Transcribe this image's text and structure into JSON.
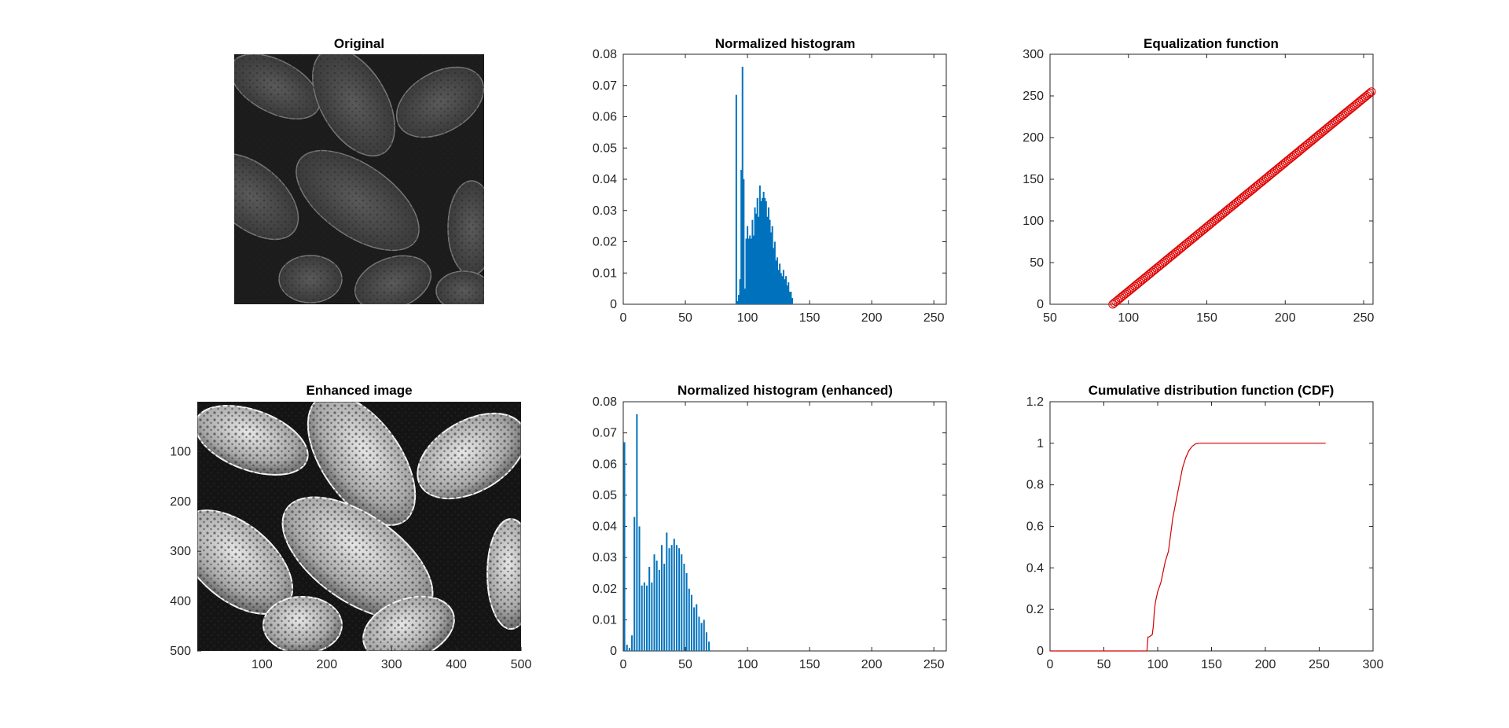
{
  "colors": {
    "hist_bar": "#0072BD",
    "cdf_line": "#D40000",
    "marker": "#E00000",
    "axes": "#262626"
  },
  "chart_data": [
    {
      "id": "original",
      "type": "image",
      "title": "Original",
      "description_visual": "low-contrast grayscale micrograph of pollen grains",
      "axes_visible": false
    },
    {
      "id": "hist",
      "type": "bar",
      "title": "Normalized histogram",
      "xlim": [
        0,
        260
      ],
      "ylim": [
        0,
        0.08
      ],
      "xticks": [
        "0",
        "50",
        "100",
        "150",
        "200",
        "250"
      ],
      "xtick_values": [
        0,
        50,
        100,
        150,
        200,
        250
      ],
      "yticks": [
        "0",
        "0.01",
        "0.02",
        "0.03",
        "0.04",
        "0.05",
        "0.06",
        "0.07",
        "0.08"
      ],
      "ytick_values": [
        0,
        0.01,
        0.02,
        0.03,
        0.04,
        0.05,
        0.06,
        0.07,
        0.08
      ],
      "x": [
        91,
        92,
        93,
        94,
        95,
        96,
        97,
        98,
        99,
        100,
        101,
        102,
        103,
        104,
        105,
        106,
        107,
        108,
        109,
        110,
        111,
        112,
        113,
        114,
        115,
        116,
        117,
        118,
        119,
        120,
        121,
        122,
        123,
        124,
        125,
        126,
        127,
        128,
        129,
        130,
        131,
        132,
        133,
        134,
        135,
        136
      ],
      "values": [
        0.067,
        0.001,
        0.003,
        0.008,
        0.043,
        0.076,
        0.04,
        0.005,
        0.021,
        0.025,
        0.021,
        0.022,
        0.021,
        0.027,
        0.022,
        0.031,
        0.029,
        0.034,
        0.028,
        0.038,
        0.033,
        0.034,
        0.036,
        0.034,
        0.033,
        0.028,
        0.031,
        0.027,
        0.023,
        0.025,
        0.018,
        0.02,
        0.014,
        0.015,
        0.011,
        0.013,
        0.01,
        0.009,
        0.011,
        0.008,
        0.009,
        0.006,
        0.007,
        0.004,
        0.004,
        0.002
      ]
    },
    {
      "id": "eqfunc",
      "type": "scatter",
      "title": "Equalization function",
      "xlim": [
        50,
        256
      ],
      "ylim": [
        0,
        300
      ],
      "xticks": [
        "50",
        "100",
        "150",
        "200",
        "250"
      ],
      "xtick_values": [
        50,
        100,
        150,
        200,
        250
      ],
      "yticks": [
        "0",
        "50",
        "100",
        "150",
        "200",
        "250",
        "300"
      ],
      "ytick_values": [
        0,
        50,
        100,
        150,
        200,
        250,
        300
      ],
      "x_range": [
        90,
        255
      ],
      "y_range": [
        0,
        255
      ],
      "marker": "circle"
    },
    {
      "id": "enhanced",
      "type": "image",
      "title": "Enhanced image",
      "xlim": [
        0,
        500
      ],
      "ylim": [
        0,
        500
      ],
      "xticks": [
        "100",
        "200",
        "300",
        "400",
        "500"
      ],
      "xtick_values": [
        100,
        200,
        300,
        400,
        500
      ],
      "yticks": [
        "100",
        "200",
        "300",
        "400",
        "500"
      ],
      "ytick_values": [
        100,
        200,
        300,
        400,
        500
      ],
      "description_visual": "high-contrast grayscale micrograph of pollen grains"
    },
    {
      "id": "hist_enh",
      "type": "bar",
      "title": "Normalized histogram (enhanced)",
      "xlim": [
        0,
        260
      ],
      "ylim": [
        0,
        0.08
      ],
      "xticks": [
        "0",
        "50",
        "100",
        "150",
        "200",
        "250"
      ],
      "xtick_values": [
        0,
        50,
        100,
        150,
        200,
        250
      ],
      "yticks": [
        "0",
        "0.01",
        "0.02",
        "0.03",
        "0.04",
        "0.05",
        "0.06",
        "0.07",
        "0.08"
      ],
      "ytick_values": [
        0,
        0.01,
        0.02,
        0.03,
        0.04,
        0.05,
        0.06,
        0.07,
        0.08
      ],
      "x": [
        1,
        3,
        5,
        7,
        9,
        11,
        13,
        15,
        17,
        19,
        21,
        23,
        25,
        27,
        29,
        31,
        33,
        35,
        37,
        39,
        41,
        43,
        45,
        47,
        49,
        51,
        53,
        55,
        57,
        59,
        61,
        63,
        65,
        67,
        69
      ],
      "values": [
        0.067,
        0.002,
        0.001,
        0.005,
        0.043,
        0.076,
        0.04,
        0.021,
        0.022,
        0.021,
        0.027,
        0.022,
        0.031,
        0.029,
        0.026,
        0.034,
        0.028,
        0.038,
        0.033,
        0.034,
        0.036,
        0.034,
        0.033,
        0.031,
        0.028,
        0.025,
        0.02,
        0.018,
        0.014,
        0.015,
        0.011,
        0.009,
        0.01,
        0.006,
        0.003
      ]
    },
    {
      "id": "cdf",
      "type": "line",
      "title": "Cumulative distribution function (CDF)",
      "xlim": [
        0,
        300
      ],
      "ylim": [
        0,
        1.2
      ],
      "xticks": [
        "0",
        "50",
        "100",
        "150",
        "200",
        "250",
        "300"
      ],
      "xtick_values": [
        0,
        50,
        100,
        150,
        200,
        250,
        300
      ],
      "yticks": [
        "0",
        "0.2",
        "0.4",
        "0.6",
        "0.8",
        "1",
        "1.2"
      ],
      "ytick_values": [
        0,
        0.2,
        0.4,
        0.6,
        0.8,
        1,
        1.2
      ],
      "x": [
        0,
        90,
        91,
        92,
        93,
        95,
        96,
        97,
        98,
        100,
        103,
        105,
        107,
        110,
        112,
        114,
        117,
        120,
        123,
        126,
        129,
        132,
        135,
        138,
        256
      ],
      "values": [
        0,
        0,
        0.067,
        0.068,
        0.071,
        0.079,
        0.122,
        0.198,
        0.238,
        0.285,
        0.33,
        0.38,
        0.43,
        0.48,
        0.56,
        0.64,
        0.72,
        0.8,
        0.88,
        0.93,
        0.965,
        0.985,
        0.997,
        1,
        1
      ]
    }
  ]
}
